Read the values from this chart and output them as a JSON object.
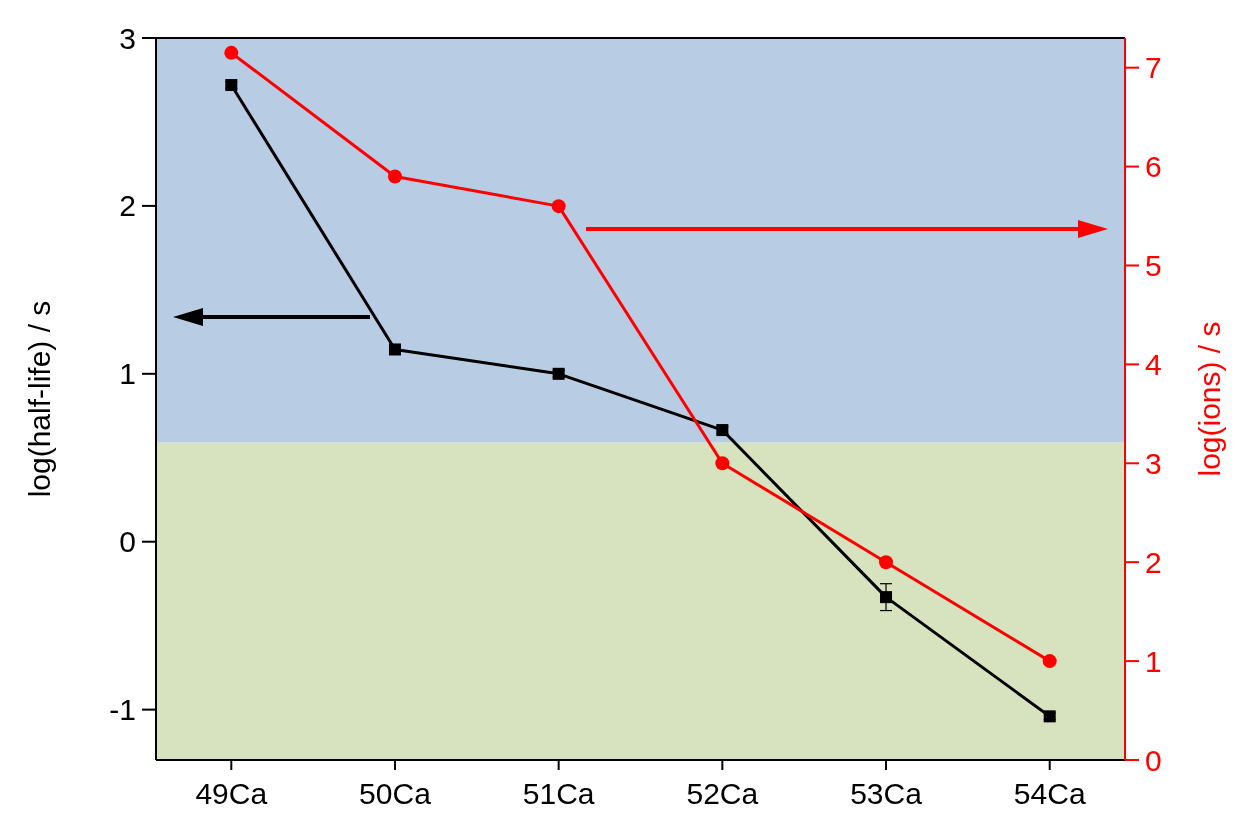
{
  "chart_data": {
    "type": "line",
    "categories": [
      "49Ca",
      "50Ca",
      "51Ca",
      "52Ca",
      "53Ca",
      "54Ca"
    ],
    "ylabel": "log(half-life) / s",
    "y2label": "log(ions) / s",
    "series": [
      {
        "color": "#000000",
        "marker": "square",
        "values": [
          2.72,
          1.145,
          1.0,
          0.665,
          -0.33,
          -1.04
        ],
        "errors": [
          0.02,
          0.02,
          0.02,
          0.02,
          0.08,
          0.02
        ]
      },
      {
        "color": "#ff0000",
        "marker": "circle",
        "axis": "y2",
        "values": [
          7.15,
          5.9,
          5.6,
          3.0,
          2.0,
          1.0
        ]
      }
    ],
    "ylim": [
      -1.3,
      3
    ],
    "yticks": [
      -1,
      0,
      1,
      2,
      3
    ],
    "y2lim": [
      0,
      7.3
    ],
    "y2ticks": [
      0,
      1,
      2,
      3,
      4,
      5,
      6,
      7
    ],
    "bands": [
      {
        "axis": "y",
        "from": 0.59,
        "to": 3,
        "color": "#b8cce4"
      },
      {
        "axis": "y",
        "from": -1.3,
        "to": 0.59,
        "color": "#d7e3bf"
      }
    ],
    "grid": false
  }
}
